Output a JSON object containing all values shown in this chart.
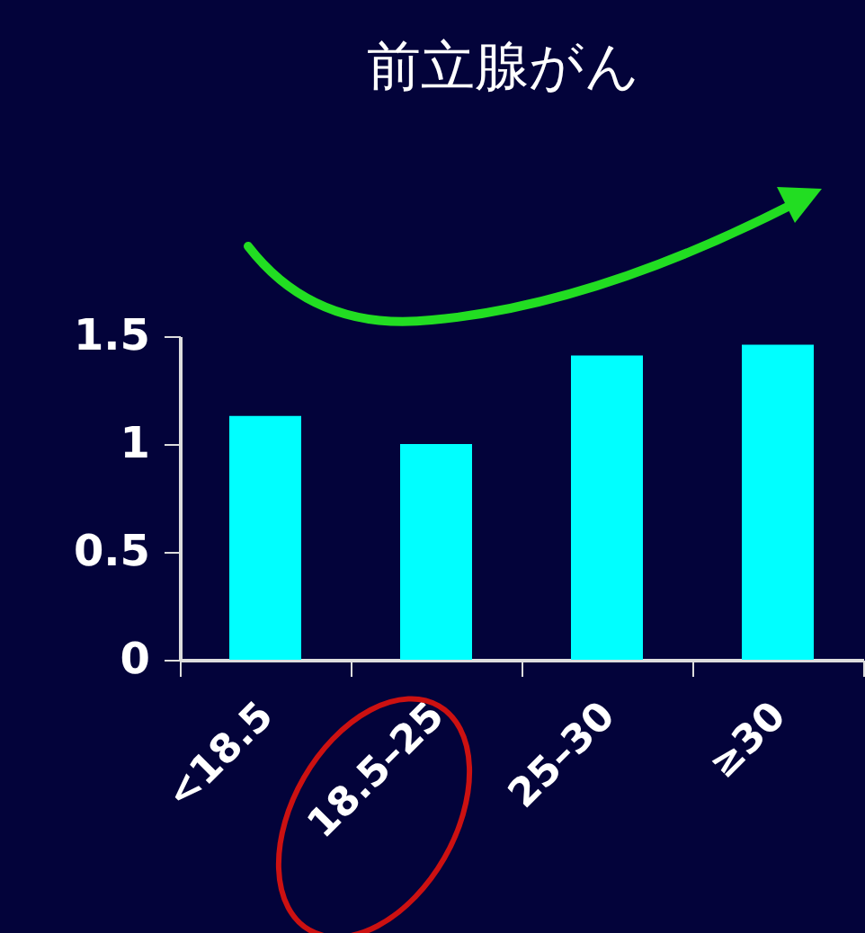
{
  "chart_data": {
    "type": "bar",
    "title": "前立腺がん",
    "categories": [
      "<18.5",
      "18.5–25",
      "25–30",
      "≥30"
    ],
    "values": [
      1.13,
      1.0,
      1.41,
      1.46
    ],
    "color": "#00ffff",
    "ylim": [
      0,
      1.5
    ],
    "yticks": [
      0,
      0.5,
      1,
      1.5
    ]
  }
}
